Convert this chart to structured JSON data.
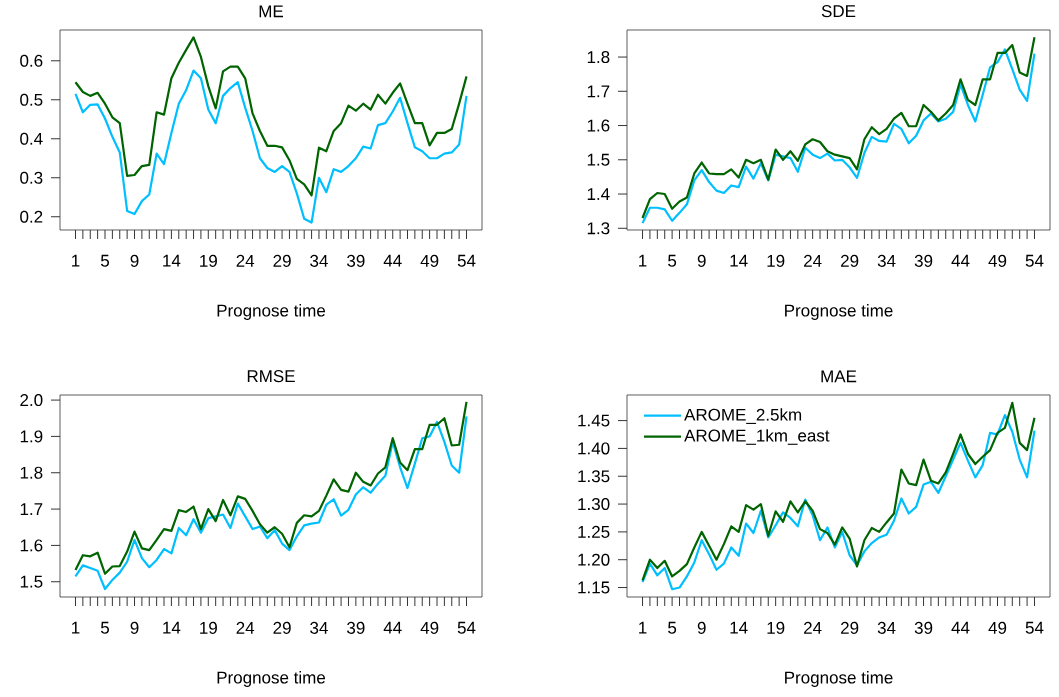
{
  "chart_data": [
    {
      "type": "line",
      "title": "ME",
      "xlabel": "Prognose time",
      "x": [
        1,
        2,
        3,
        4,
        5,
        6,
        7,
        8,
        9,
        10,
        11,
        12,
        13,
        14,
        15,
        16,
        17,
        18,
        19,
        20,
        21,
        22,
        23,
        24,
        25,
        26,
        27,
        28,
        29,
        30,
        31,
        32,
        33,
        34,
        35,
        36,
        37,
        38,
        39,
        40,
        41,
        42,
        43,
        44,
        45,
        46,
        47,
        48,
        49,
        50,
        51,
        52,
        53,
        54
      ],
      "xlim": [
        -1.1,
        56.1
      ],
      "xticks": [
        1,
        {
          "value": 2,
          "label": null
        },
        {
          "value": 3,
          "label": null
        },
        {
          "value": 4,
          "label": null
        },
        5,
        {
          "value": 6,
          "label": null
        },
        {
          "value": 7,
          "label": null
        },
        {
          "value": 8,
          "label": null
        },
        9,
        {
          "value": 10,
          "label": null
        },
        {
          "value": 11,
          "label": null
        },
        {
          "value": 12,
          "label": null
        },
        {
          "value": 13,
          "label": null
        },
        14,
        {
          "value": 15,
          "label": null
        },
        {
          "value": 16,
          "label": null
        },
        {
          "value": 17,
          "label": null
        },
        {
          "value": 18,
          "label": null
        },
        19,
        {
          "value": 20,
          "label": null
        },
        {
          "value": 21,
          "label": null
        },
        {
          "value": 22,
          "label": null
        },
        {
          "value": 23,
          "label": null
        },
        24,
        {
          "value": 25,
          "label": null
        },
        {
          "value": 26,
          "label": null
        },
        {
          "value": 27,
          "label": null
        },
        {
          "value": 28,
          "label": null
        },
        29,
        {
          "value": 30,
          "label": null
        },
        {
          "value": 31,
          "label": null
        },
        {
          "value": 32,
          "label": null
        },
        {
          "value": 33,
          "label": null
        },
        34,
        {
          "value": 35,
          "label": null
        },
        {
          "value": 36,
          "label": null
        },
        {
          "value": 37,
          "label": null
        },
        {
          "value": 38,
          "label": null
        },
        39,
        {
          "value": 40,
          "label": null
        },
        {
          "value": 41,
          "label": null
        },
        {
          "value": 42,
          "label": null
        },
        {
          "value": 43,
          "label": null
        },
        44,
        {
          "value": 45,
          "label": null
        },
        {
          "value": 46,
          "label": null
        },
        {
          "value": 47,
          "label": null
        },
        {
          "value": 48,
          "label": null
        },
        49,
        {
          "value": 50,
          "label": null
        },
        {
          "value": 51,
          "label": null
        },
        {
          "value": 52,
          "label": null
        },
        {
          "value": 53,
          "label": null
        },
        54
      ],
      "ylim": [
        0.166,
        0.679
      ],
      "yticks": [
        0.2,
        0.3,
        0.4,
        0.5,
        0.6
      ],
      "series": [
        {
          "color": "#00bfff",
          "values": [
            0.515,
            0.468,
            0.487,
            0.488,
            0.452,
            0.405,
            0.365,
            0.215,
            0.207,
            0.24,
            0.257,
            0.362,
            0.335,
            0.415,
            0.49,
            0.525,
            0.575,
            0.555,
            0.475,
            0.44,
            0.51,
            0.53,
            0.545,
            0.48,
            0.42,
            0.35,
            0.325,
            0.315,
            0.33,
            0.315,
            0.26,
            0.195,
            0.185,
            0.3,
            0.263,
            0.322,
            0.315,
            0.33,
            0.35,
            0.38,
            0.375,
            0.435,
            0.44,
            0.47,
            0.505,
            0.44,
            0.378,
            0.368,
            0.35,
            0.35,
            0.362,
            0.365,
            0.385,
            0.51
          ]
        },
        {
          "color": "#006400",
          "values": [
            0.545,
            0.52,
            0.51,
            0.518,
            0.49,
            0.455,
            0.44,
            0.305,
            0.307,
            0.33,
            0.333,
            0.468,
            0.462,
            0.555,
            0.595,
            0.628,
            0.66,
            0.61,
            0.535,
            0.478,
            0.573,
            0.585,
            0.585,
            0.555,
            0.465,
            0.42,
            0.382,
            0.382,
            0.378,
            0.345,
            0.297,
            0.283,
            0.255,
            0.377,
            0.368,
            0.42,
            0.44,
            0.485,
            0.472,
            0.49,
            0.475,
            0.513,
            0.49,
            0.518,
            0.542,
            0.49,
            0.44,
            0.44,
            0.383,
            0.415,
            0.415,
            0.425,
            0.49,
            0.56
          ]
        }
      ]
    },
    {
      "type": "line",
      "title": "SDE",
      "xlabel": "Prognose time",
      "x": [
        1,
        2,
        3,
        4,
        5,
        6,
        7,
        8,
        9,
        10,
        11,
        12,
        13,
        14,
        15,
        16,
        17,
        18,
        19,
        20,
        21,
        22,
        23,
        24,
        25,
        26,
        27,
        28,
        29,
        30,
        31,
        32,
        33,
        34,
        35,
        36,
        37,
        38,
        39,
        40,
        41,
        42,
        43,
        44,
        45,
        46,
        47,
        48,
        49,
        50,
        51,
        52,
        53,
        54
      ],
      "xlim": [
        -1.1,
        56.1
      ],
      "xticks": [
        1,
        {
          "value": 2,
          "label": null
        },
        {
          "value": 3,
          "label": null
        },
        {
          "value": 4,
          "label": null
        },
        5,
        {
          "value": 6,
          "label": null
        },
        {
          "value": 7,
          "label": null
        },
        {
          "value": 8,
          "label": null
        },
        9,
        {
          "value": 10,
          "label": null
        },
        {
          "value": 11,
          "label": null
        },
        {
          "value": 12,
          "label": null
        },
        {
          "value": 13,
          "label": null
        },
        14,
        {
          "value": 15,
          "label": null
        },
        {
          "value": 16,
          "label": null
        },
        {
          "value": 17,
          "label": null
        },
        {
          "value": 18,
          "label": null
        },
        19,
        {
          "value": 20,
          "label": null
        },
        {
          "value": 21,
          "label": null
        },
        {
          "value": 22,
          "label": null
        },
        {
          "value": 23,
          "label": null
        },
        24,
        {
          "value": 25,
          "label": null
        },
        {
          "value": 26,
          "label": null
        },
        {
          "value": 27,
          "label": null
        },
        {
          "value": 28,
          "label": null
        },
        29,
        {
          "value": 30,
          "label": null
        },
        {
          "value": 31,
          "label": null
        },
        {
          "value": 32,
          "label": null
        },
        {
          "value": 33,
          "label": null
        },
        34,
        {
          "value": 35,
          "label": null
        },
        {
          "value": 36,
          "label": null
        },
        {
          "value": 37,
          "label": null
        },
        {
          "value": 38,
          "label": null
        },
        39,
        {
          "value": 40,
          "label": null
        },
        {
          "value": 41,
          "label": null
        },
        {
          "value": 42,
          "label": null
        },
        {
          "value": 43,
          "label": null
        },
        44,
        {
          "value": 45,
          "label": null
        },
        {
          "value": 46,
          "label": null
        },
        {
          "value": 47,
          "label": null
        },
        {
          "value": 48,
          "label": null
        },
        49,
        {
          "value": 50,
          "label": null
        },
        {
          "value": 51,
          "label": null
        },
        {
          "value": 52,
          "label": null
        },
        {
          "value": 53,
          "label": null
        },
        54
      ],
      "ylim": [
        1.295,
        1.879
      ],
      "yticks": [
        1.3,
        1.4,
        1.5,
        1.6,
        1.7,
        1.8
      ],
      "series": [
        {
          "color": "#00bfff",
          "values": [
            1.315,
            1.36,
            1.36,
            1.355,
            1.322,
            1.345,
            1.37,
            1.44,
            1.47,
            1.435,
            1.41,
            1.403,
            1.425,
            1.42,
            1.48,
            1.445,
            1.49,
            1.44,
            1.515,
            1.51,
            1.505,
            1.465,
            1.535,
            1.515,
            1.505,
            1.518,
            1.498,
            1.5,
            1.478,
            1.447,
            1.52,
            1.567,
            1.555,
            1.553,
            1.605,
            1.59,
            1.548,
            1.57,
            1.615,
            1.635,
            1.612,
            1.62,
            1.64,
            1.72,
            1.66,
            1.612,
            1.69,
            1.77,
            1.785,
            1.822,
            1.765,
            1.705,
            1.672,
            1.81
          ]
        },
        {
          "color": "#006400",
          "values": [
            1.33,
            1.385,
            1.403,
            1.4,
            1.357,
            1.378,
            1.39,
            1.46,
            1.492,
            1.46,
            1.458,
            1.458,
            1.472,
            1.448,
            1.5,
            1.49,
            1.5,
            1.442,
            1.53,
            1.5,
            1.525,
            1.497,
            1.545,
            1.56,
            1.552,
            1.525,
            1.515,
            1.51,
            1.505,
            1.472,
            1.56,
            1.595,
            1.575,
            1.59,
            1.62,
            1.637,
            1.598,
            1.598,
            1.66,
            1.64,
            1.615,
            1.635,
            1.66,
            1.735,
            1.675,
            1.66,
            1.735,
            1.735,
            1.812,
            1.812,
            1.835,
            1.755,
            1.745,
            1.858
          ]
        }
      ]
    },
    {
      "type": "line",
      "title": "RMSE",
      "xlabel": "Prognose time",
      "x": [
        1,
        2,
        3,
        4,
        5,
        6,
        7,
        8,
        9,
        10,
        11,
        12,
        13,
        14,
        15,
        16,
        17,
        18,
        19,
        20,
        21,
        22,
        23,
        24,
        25,
        26,
        27,
        28,
        29,
        30,
        31,
        32,
        33,
        34,
        35,
        36,
        37,
        38,
        39,
        40,
        41,
        42,
        43,
        44,
        45,
        46,
        47,
        48,
        49,
        50,
        51,
        52,
        53,
        54
      ],
      "xlim": [
        -1.1,
        56.1
      ],
      "xticks": [
        1,
        {
          "value": 2,
          "label": null
        },
        {
          "value": 3,
          "label": null
        },
        {
          "value": 4,
          "label": null
        },
        5,
        {
          "value": 6,
          "label": null
        },
        {
          "value": 7,
          "label": null
        },
        {
          "value": 8,
          "label": null
        },
        9,
        {
          "value": 10,
          "label": null
        },
        {
          "value": 11,
          "label": null
        },
        {
          "value": 12,
          "label": null
        },
        {
          "value": 13,
          "label": null
        },
        14,
        {
          "value": 15,
          "label": null
        },
        {
          "value": 16,
          "label": null
        },
        {
          "value": 17,
          "label": null
        },
        {
          "value": 18,
          "label": null
        },
        19,
        {
          "value": 20,
          "label": null
        },
        {
          "value": 21,
          "label": null
        },
        {
          "value": 22,
          "label": null
        },
        {
          "value": 23,
          "label": null
        },
        24,
        {
          "value": 25,
          "label": null
        },
        {
          "value": 26,
          "label": null
        },
        {
          "value": 27,
          "label": null
        },
        {
          "value": 28,
          "label": null
        },
        29,
        {
          "value": 30,
          "label": null
        },
        {
          "value": 31,
          "label": null
        },
        {
          "value": 32,
          "label": null
        },
        {
          "value": 33,
          "label": null
        },
        34,
        {
          "value": 35,
          "label": null
        },
        {
          "value": 36,
          "label": null
        },
        {
          "value": 37,
          "label": null
        },
        {
          "value": 38,
          "label": null
        },
        39,
        {
          "value": 40,
          "label": null
        },
        {
          "value": 41,
          "label": null
        },
        {
          "value": 42,
          "label": null
        },
        {
          "value": 43,
          "label": null
        },
        44,
        {
          "value": 45,
          "label": null
        },
        {
          "value": 46,
          "label": null
        },
        {
          "value": 47,
          "label": null
        },
        {
          "value": 48,
          "label": null
        },
        49,
        {
          "value": 50,
          "label": null
        },
        {
          "value": 51,
          "label": null
        },
        {
          "value": 52,
          "label": null
        },
        {
          "value": 53,
          "label": null
        },
        54
      ],
      "ylim": [
        1.458,
        2.014
      ],
      "yticks": [
        1.5,
        1.6,
        1.7,
        1.8,
        1.9,
        {
          "value": 2,
          "label": "2.0"
        }
      ],
      "series": [
        {
          "color": "#00bfff",
          "values": [
            1.515,
            1.545,
            1.538,
            1.53,
            1.48,
            1.505,
            1.525,
            1.555,
            1.615,
            1.565,
            1.54,
            1.56,
            1.59,
            1.578,
            1.648,
            1.628,
            1.672,
            1.635,
            1.675,
            1.68,
            1.685,
            1.648,
            1.715,
            1.68,
            1.645,
            1.652,
            1.62,
            1.642,
            1.605,
            1.587,
            1.625,
            1.655,
            1.66,
            1.663,
            1.712,
            1.727,
            1.682,
            1.698,
            1.74,
            1.76,
            1.745,
            1.77,
            1.792,
            1.885,
            1.815,
            1.758,
            1.825,
            1.895,
            1.9,
            1.94,
            1.885,
            1.82,
            1.8,
            1.955
          ]
        },
        {
          "color": "#006400",
          "values": [
            1.532,
            1.573,
            1.57,
            1.58,
            1.522,
            1.542,
            1.543,
            1.583,
            1.638,
            1.592,
            1.587,
            1.615,
            1.645,
            1.64,
            1.697,
            1.692,
            1.707,
            1.645,
            1.7,
            1.667,
            1.725,
            1.683,
            1.735,
            1.728,
            1.695,
            1.658,
            1.635,
            1.65,
            1.632,
            1.595,
            1.662,
            1.683,
            1.68,
            1.695,
            1.737,
            1.782,
            1.753,
            1.748,
            1.8,
            1.775,
            1.765,
            1.798,
            1.815,
            1.895,
            1.828,
            1.807,
            1.865,
            1.865,
            1.932,
            1.932,
            1.95,
            1.875,
            1.877,
            1.995
          ]
        }
      ]
    },
    {
      "type": "line",
      "title": "MAE",
      "xlabel": "Prognose time",
      "legend": "top left",
      "x": [
        1,
        2,
        3,
        4,
        5,
        6,
        7,
        8,
        9,
        10,
        11,
        12,
        13,
        14,
        15,
        16,
        17,
        18,
        19,
        20,
        21,
        22,
        23,
        24,
        25,
        26,
        27,
        28,
        29,
        30,
        31,
        32,
        33,
        34,
        35,
        36,
        37,
        38,
        39,
        40,
        41,
        42,
        43,
        44,
        45,
        46,
        47,
        48,
        49,
        50,
        51,
        52,
        53,
        54
      ],
      "xlim": [
        -1.1,
        56.1
      ],
      "xticks": [
        1,
        {
          "value": 2,
          "label": null
        },
        {
          "value": 3,
          "label": null
        },
        {
          "value": 4,
          "label": null
        },
        5,
        {
          "value": 6,
          "label": null
        },
        {
          "value": 7,
          "label": null
        },
        {
          "value": 8,
          "label": null
        },
        9,
        {
          "value": 10,
          "label": null
        },
        {
          "value": 11,
          "label": null
        },
        {
          "value": 12,
          "label": null
        },
        {
          "value": 13,
          "label": null
        },
        14,
        {
          "value": 15,
          "label": null
        },
        {
          "value": 16,
          "label": null
        },
        {
          "value": 17,
          "label": null
        },
        {
          "value": 18,
          "label": null
        },
        19,
        {
          "value": 20,
          "label": null
        },
        {
          "value": 21,
          "label": null
        },
        {
          "value": 22,
          "label": null
        },
        {
          "value": 23,
          "label": null
        },
        24,
        {
          "value": 25,
          "label": null
        },
        {
          "value": 26,
          "label": null
        },
        {
          "value": 27,
          "label": null
        },
        {
          "value": 28,
          "label": null
        },
        29,
        {
          "value": 30,
          "label": null
        },
        {
          "value": 31,
          "label": null
        },
        {
          "value": 32,
          "label": null
        },
        {
          "value": 33,
          "label": null
        },
        34,
        {
          "value": 35,
          "label": null
        },
        {
          "value": 36,
          "label": null
        },
        {
          "value": 37,
          "label": null
        },
        {
          "value": 38,
          "label": null
        },
        39,
        {
          "value": 40,
          "label": null
        },
        {
          "value": 41,
          "label": null
        },
        {
          "value": 42,
          "label": null
        },
        {
          "value": 43,
          "label": null
        },
        44,
        {
          "value": 45,
          "label": null
        },
        {
          "value": 46,
          "label": null
        },
        {
          "value": 47,
          "label": null
        },
        {
          "value": 48,
          "label": null
        },
        49,
        {
          "value": 50,
          "label": null
        },
        {
          "value": 51,
          "label": null
        },
        {
          "value": 52,
          "label": null
        },
        {
          "value": 53,
          "label": null
        },
        54
      ],
      "ylim": [
        1.133,
        1.496
      ],
      "yticks": [
        1.15,
        {
          "value": 1.2,
          "label": "1.20"
        },
        1.25,
        {
          "value": 1.3,
          "label": "1.30"
        },
        1.35,
        {
          "value": 1.4,
          "label": "1.40"
        },
        1.45
      ],
      "series": [
        {
          "name": "AROME_2.5km",
          "color": "#00bfff",
          "values": [
            1.16,
            1.193,
            1.172,
            1.185,
            1.147,
            1.15,
            1.17,
            1.195,
            1.235,
            1.21,
            1.182,
            1.193,
            1.222,
            1.207,
            1.265,
            1.248,
            1.288,
            1.24,
            1.262,
            1.285,
            1.275,
            1.26,
            1.308,
            1.28,
            1.235,
            1.258,
            1.222,
            1.25,
            1.208,
            1.19,
            1.215,
            1.23,
            1.24,
            1.245,
            1.27,
            1.31,
            1.283,
            1.295,
            1.335,
            1.34,
            1.32,
            1.35,
            1.38,
            1.41,
            1.378,
            1.348,
            1.37,
            1.428,
            1.425,
            1.46,
            1.43,
            1.38,
            1.348,
            1.432
          ]
        },
        {
          "name": "AROME_1km_east",
          "color": "#006400",
          "values": [
            1.163,
            1.2,
            1.185,
            1.198,
            1.17,
            1.18,
            1.192,
            1.222,
            1.25,
            1.225,
            1.2,
            1.228,
            1.26,
            1.25,
            1.298,
            1.29,
            1.3,
            1.243,
            1.287,
            1.268,
            1.305,
            1.285,
            1.305,
            1.288,
            1.255,
            1.248,
            1.227,
            1.258,
            1.238,
            1.188,
            1.235,
            1.257,
            1.25,
            1.267,
            1.283,
            1.362,
            1.337,
            1.334,
            1.38,
            1.342,
            1.337,
            1.357,
            1.39,
            1.425,
            1.39,
            1.372,
            1.385,
            1.397,
            1.428,
            1.437,
            1.482,
            1.41,
            1.397,
            1.455
          ]
        }
      ]
    }
  ]
}
